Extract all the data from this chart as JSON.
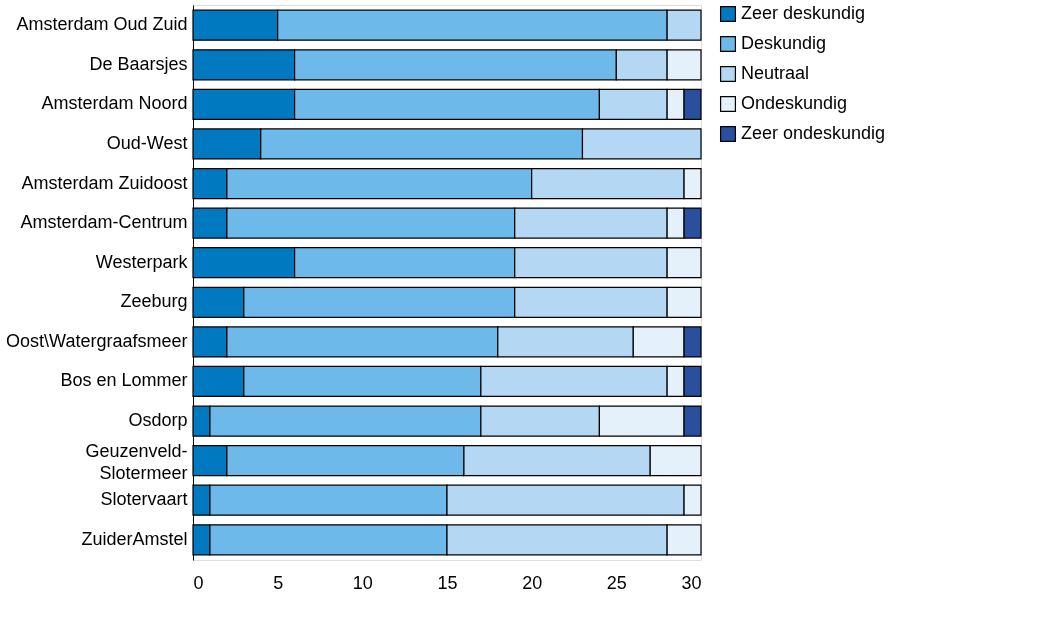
{
  "chart_data": {
    "type": "bar",
    "orientation": "horizontal",
    "stacked": true,
    "categories": [
      "Amsterdam Oud Zuid",
      "De Baarsjes",
      "Amsterdam Noord",
      "Oud-West",
      "Amsterdam Zuidoost",
      "Amsterdam-Centrum",
      "Westerpark",
      "Zeeburg",
      "Oost\\Watergraafsmeer",
      "Bos en Lommer",
      "Osdorp",
      "Geuzenveld-\nSlotermeer ",
      "Slotervaart",
      "ZuiderAmstel"
    ],
    "series": [
      {
        "name": "Zeer deskundig",
        "color": "#0079c1",
        "values": [
          5,
          6,
          6,
          4,
          2,
          2,
          6,
          3,
          2,
          3,
          1,
          2,
          1,
          1
        ]
      },
      {
        "name": "Deskundig",
        "color": "#6cb9ea",
        "values": [
          23,
          19,
          18,
          19,
          18,
          17,
          13,
          16,
          16,
          14,
          16,
          14,
          14,
          14
        ]
      },
      {
        "name": "Neutraal",
        "color": "#b4d8f3",
        "values": [
          2,
          3,
          4,
          7,
          9,
          9,
          9,
          9,
          8,
          11,
          7,
          11,
          14,
          13
        ]
      },
      {
        "name": "Ondeskundig",
        "color": "#e4f0fa",
        "values": [
          0,
          2,
          1,
          0,
          1,
          1,
          2,
          2,
          3,
          1,
          5,
          3,
          1,
          2
        ]
      },
      {
        "name": "Zeer ondeskundig",
        "color": "#2a4f9c",
        "values": [
          0,
          0,
          1,
          0,
          0,
          1,
          0,
          0,
          1,
          1,
          1,
          0,
          0,
          0
        ]
      }
    ],
    "xlim": [
      0,
      30
    ],
    "xticks": [
      0,
      5,
      10,
      15,
      20,
      25,
      30
    ],
    "grid": false,
    "legend": "right"
  }
}
